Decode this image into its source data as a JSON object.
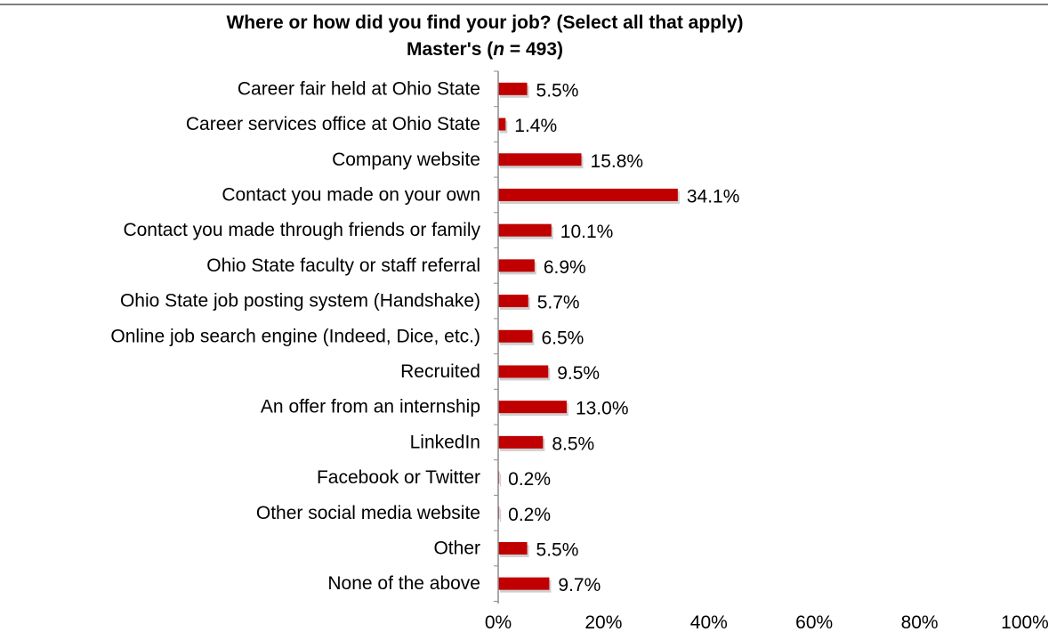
{
  "chart_data": {
    "type": "bar",
    "orientation": "horizontal",
    "title": "Where or how did you find your job? (Select all that apply)",
    "subtitle_prefix": "Master's (",
    "subtitle_n": "n",
    "subtitle_suffix": " = 493)",
    "categories": [
      "Career fair held at Ohio State",
      "Career services office at Ohio State",
      "Company website",
      "Contact you made on your own",
      "Contact you made through friends or family",
      "Ohio State faculty or staff referral",
      "Ohio State job posting system (Handshake)",
      "Online job search engine (Indeed, Dice, etc.)",
      "Recruited",
      "An offer from an internship",
      "LinkedIn",
      "Facebook or Twitter",
      "Other social media website",
      "Other",
      "None of the above"
    ],
    "values": [
      5.5,
      1.4,
      15.8,
      34.1,
      10.1,
      6.9,
      5.7,
      6.5,
      9.5,
      13.0,
      8.5,
      0.2,
      0.2,
      5.5,
      9.7
    ],
    "value_labels": [
      "5.5%",
      "1.4%",
      "15.8%",
      "34.1%",
      "10.1%",
      "6.9%",
      "5.7%",
      "6.5%",
      "9.5%",
      "13.0%",
      "8.5%",
      "0.2%",
      "0.2%",
      "5.5%",
      "9.7%"
    ],
    "xlim": [
      0,
      100
    ],
    "x_ticks": [
      0,
      20,
      40,
      60,
      80,
      100
    ],
    "x_tick_labels": [
      "0%",
      "20%",
      "40%",
      "60%",
      "80%",
      "100%"
    ],
    "bar_color": "#c00000",
    "grid": false,
    "legend": "none"
  }
}
